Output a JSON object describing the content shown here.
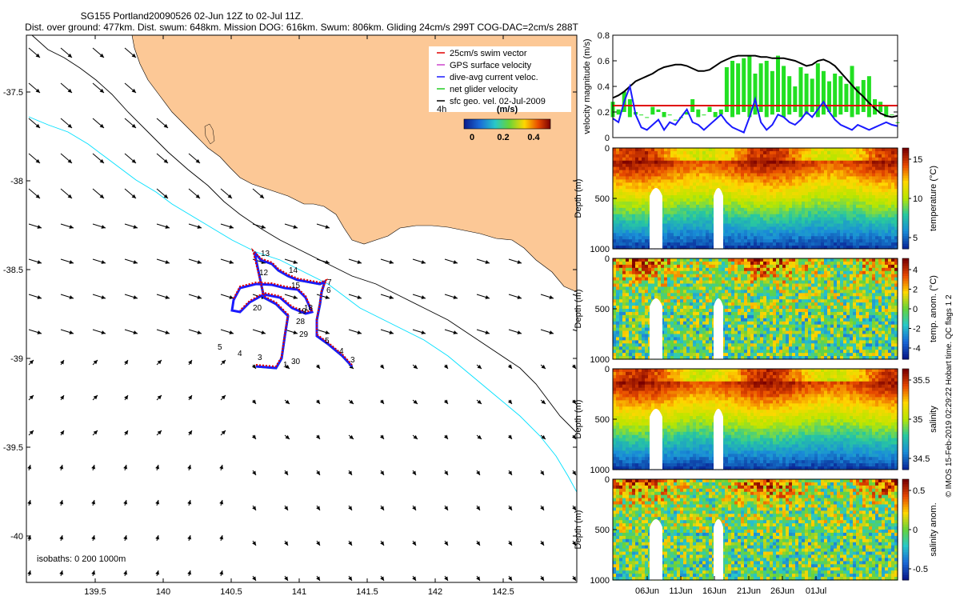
{
  "header": {
    "title": "SG155 Portland20090526 02-Jun 12Z to 02-Jul 11Z.",
    "subtitle": "Dist. over ground: 477km. Dist. swum: 648km. Mission DOG: 616km. Swum: 806km. Gliding 24cm/s 299T COG-DAC=2cm/s 288T"
  },
  "map": {
    "legend": [
      {
        "label": "25cm/s swim vector",
        "color": "#e00000"
      },
      {
        "label": "GPS surface velocity",
        "color": "#cc44cc"
      },
      {
        "label": "dive-avg current veloc.",
        "color": "#1a1aff"
      },
      {
        "label": "net glider velocity",
        "color": "#22cc22"
      },
      {
        "label": "sfc geo. vel. 02-Jul-2009",
        "color": "#000000"
      }
    ],
    "colorbar": {
      "left_label": "4h",
      "unit_label": "(m/s)",
      "ticks": [
        "0",
        "0.2",
        "0.4"
      ]
    },
    "x_ticks": [
      "139.5",
      "140",
      "140.5",
      "141",
      "141.5",
      "142",
      "142.5"
    ],
    "y_ticks": [
      "-37.5",
      "-38",
      "-38.5",
      "-39",
      "-39.5",
      "-40"
    ],
    "isobaths_label": "isobaths: 0   200   1000m",
    "track_labels": [
      "13",
      "12",
      "14",
      "15",
      "7",
      "6",
      "19",
      "18",
      "20",
      "28",
      "29",
      "5",
      "4",
      "3",
      "5",
      "4",
      "3",
      "1",
      "30"
    ]
  },
  "velocity_panel": {
    "ylabel": "velocity magnitude (m/s)",
    "y_ticks": [
      "0",
      "0.2",
      "0.4",
      "0.6",
      "0.8"
    ],
    "series": [
      {
        "color": "#000000",
        "values": [
          0.31,
          0.33,
          0.36,
          0.4,
          0.44,
          0.46,
          0.48,
          0.5,
          0.53,
          0.55,
          0.56,
          0.57,
          0.57,
          0.56,
          0.54,
          0.52,
          0.52,
          0.53,
          0.56,
          0.59,
          0.61,
          0.63,
          0.64,
          0.64,
          0.64,
          0.64,
          0.63,
          0.63,
          0.62,
          0.62,
          0.62,
          0.61,
          0.6,
          0.58,
          0.56,
          0.57,
          0.6,
          0.61,
          0.59,
          0.56,
          0.51,
          0.46,
          0.41,
          0.36,
          0.32,
          0.27,
          0.23,
          0.19,
          0.17,
          0.16,
          0.17
        ]
      },
      {
        "color": "#e00000",
        "values": [
          0.25,
          0.25,
          0.25,
          0.25,
          0.25,
          0.25,
          0.25,
          0.25,
          0.25,
          0.25,
          0.25,
          0.25,
          0.25,
          0.25,
          0.25,
          0.25,
          0.25,
          0.25,
          0.25,
          0.25,
          0.25,
          0.25,
          0.25,
          0.25,
          0.25,
          0.25,
          0.25,
          0.25,
          0.25,
          0.25,
          0.25,
          0.25,
          0.25,
          0.25,
          0.25,
          0.25,
          0.25,
          0.25,
          0.25,
          0.25,
          0.25,
          0.25,
          0.25,
          0.25,
          0.25,
          0.25,
          0.25,
          0.25,
          0.25,
          0.25,
          0.25
        ]
      },
      {
        "color": "#1a1aff",
        "values": [
          0.15,
          0.12,
          0.28,
          0.4,
          0.18,
          0.08,
          0.06,
          0.1,
          0.14,
          0.06,
          0.12,
          0.1,
          0.16,
          0.22,
          0.12,
          0.1,
          0.06,
          0.1,
          0.14,
          0.18,
          0.12,
          0.08,
          0.06,
          0.04,
          0.16,
          0.3,
          0.12,
          0.06,
          0.1,
          0.18,
          0.16,
          0.12,
          0.1,
          0.14,
          0.2,
          0.16,
          0.22,
          0.28,
          0.2,
          0.14,
          0.1,
          0.08,
          0.06,
          0.1,
          0.08,
          0.06,
          0.08,
          0.1,
          0.12,
          0.1,
          0.09
        ]
      }
    ],
    "green_bars": [
      0.28,
      0.22,
      0.36,
      0.3,
      0.2,
      0.18,
      0.16,
      0.24,
      0.22,
      0.2,
      0.18,
      0.14,
      0.16,
      0.2,
      0.3,
      0.22,
      0.18,
      0.24,
      0.2,
      0.22,
      0.55,
      0.6,
      0.58,
      0.62,
      0.64,
      0.5,
      0.58,
      0.6,
      0.52,
      0.64,
      0.56,
      0.48,
      0.4,
      0.55,
      0.5,
      0.46,
      0.58,
      0.52,
      0.44,
      0.5,
      0.48,
      0.42,
      0.56,
      0.4,
      0.45,
      0.48,
      0.3,
      0.28,
      0.25,
      0.18,
      0.12
    ]
  },
  "section_panels": [
    {
      "label": "temperature (°C)",
      "cb_ticks": [
        "15",
        "10",
        "5"
      ],
      "cb_colors": [
        "#7a0000",
        "#e84a00",
        "#ffd700",
        "#b8e600",
        "#28c8a0",
        "#1a8ed8",
        "#0a2a9a"
      ]
    },
    {
      "label": "temp. anom. (°C)",
      "cb_ticks": [
        "4",
        "2",
        "0",
        "-2",
        "-4"
      ],
      "cb_colors": [
        "#7a0000",
        "#e84a00",
        "#ffd700",
        "#66d43a",
        "#28c8c8",
        "#1a6ad8",
        "#0a1a8a"
      ]
    },
    {
      "label": "salinity",
      "cb_ticks": [
        "35.5",
        "35",
        "34.5"
      ],
      "cb_colors": [
        "#7a0000",
        "#e84a00",
        "#ffd700",
        "#b8e600",
        "#28c8a0",
        "#1a8ed8",
        "#0a2a9a"
      ]
    },
    {
      "label": "salinity anom.",
      "cb_ticks": [
        "0.5",
        "0",
        "-0.5"
      ],
      "cb_colors": [
        "#7a0000",
        "#e84a00",
        "#ffd700",
        "#66d43a",
        "#28c8c8",
        "#1a6ad8",
        "#0a1a8a"
      ]
    }
  ],
  "section_depth_label": "Depth (m)",
  "section_y_ticks": [
    "0",
    "500",
    "1000"
  ],
  "section_x_ticks": [
    "06Jun",
    "11Jun",
    "16Jun",
    "21Jun",
    "26Jun",
    "01Jul"
  ],
  "side_note": "© IMOS 15-Feb-2019 02:29:22 Hobart time. QC flags 1  2",
  "colors": {
    "land": "#fcc896",
    "cyan_isobath": "#00e0ff"
  },
  "chart_data": [
    {
      "type": "line",
      "title": "velocity magnitude",
      "ylabel": "velocity magnitude (m/s)",
      "ylim": [
        0,
        0.8
      ],
      "xlabel": "",
      "x_ticks": [
        "06Jun",
        "11Jun",
        "16Jun",
        "21Jun",
        "26Jun",
        "01Jul"
      ]
    }
  ]
}
